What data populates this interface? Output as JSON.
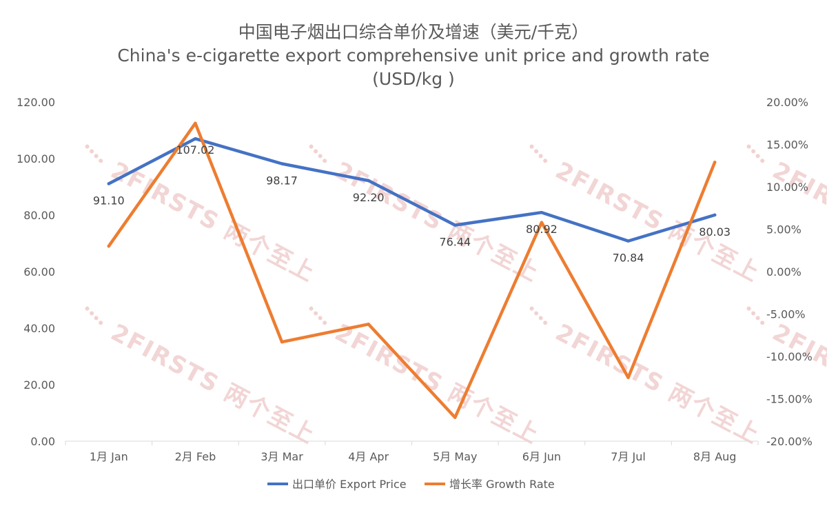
{
  "chart_data": {
    "type": "line",
    "title": "中国电子烟出口综合单价及增速（美元/千克）",
    "subtitle": "China's e-cigarette export comprehensive unit price and growth rate",
    "subtitle2": "(USD/kg )",
    "categories": [
      "1月 Jan",
      "2月 Feb",
      "3月 Mar",
      "4月 Apr",
      "5月 May",
      "6月 Jun",
      "7月 Jul",
      "8月 Aug"
    ],
    "series": [
      {
        "name": "出口单价 Export Price",
        "axis": "left",
        "color": "#4472C4",
        "values": [
          91.1,
          107.02,
          98.17,
          92.2,
          76.44,
          80.92,
          70.84,
          80.03
        ],
        "labels": [
          "91.10",
          "107.02",
          "98.17",
          "92.20",
          "76.44",
          "80.92",
          "70.84",
          "80.03"
        ]
      },
      {
        "name": "增长率 Growth Rate",
        "axis": "right",
        "color": "#ED7D31",
        "values": [
          3.0,
          17.5,
          -8.3,
          -6.2,
          -17.2,
          5.8,
          -12.5,
          12.9
        ]
      }
    ],
    "y_left": {
      "min": 0,
      "max": 120,
      "step": 20,
      "tick_labels": [
        "0.00",
        "20.00",
        "40.00",
        "60.00",
        "80.00",
        "100.00",
        "120.00"
      ]
    },
    "y_right": {
      "min": -20,
      "max": 20,
      "step": 5,
      "tick_labels": [
        "-20.00%",
        "-15.00%",
        "-10.00%",
        "-5.00%",
        "0.00%",
        "5.00%",
        "10.00%",
        "15.00%",
        "20.00%"
      ]
    },
    "grid": false,
    "legend": "bottom-center"
  },
  "watermark": {
    "text": "2FIRSTS 两个至上",
    "color": "#e9b3b3"
  }
}
